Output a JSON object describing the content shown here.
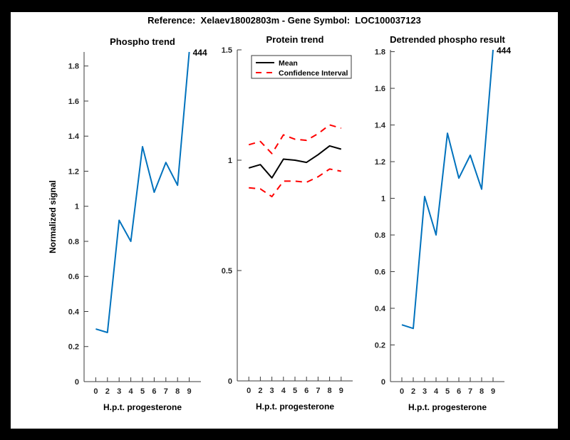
{
  "figure": {
    "title": "Reference:  Xelaev18002803m - Gene Symbol:  LOC100037123"
  },
  "colors": {
    "line_blue": "#0072BD",
    "ci_red": "#FF0000",
    "mean_black": "#000000",
    "axis": "#3a3a3a",
    "canvas": "#ffffff",
    "frame": "#000000"
  },
  "chart_data": [
    {
      "id": "phospho-trend",
      "type": "line",
      "title": "Phospho trend",
      "xlabel": "H.p.t. progesterone",
      "ylabel": "Normalized signal",
      "xlim": [
        0,
        10
      ],
      "ylim": [
        0,
        1.88
      ],
      "x": [
        1,
        2,
        3,
        4,
        5,
        6,
        7,
        8,
        9
      ],
      "x_tick_labels": [
        "0",
        "2",
        "3",
        "4",
        "5",
        "6",
        "7",
        "8",
        "9"
      ],
      "yticks": [
        0,
        0.2,
        0.4,
        0.6,
        0.8,
        1,
        1.2,
        1.4,
        1.6,
        1.8
      ],
      "grid": false,
      "legend": null,
      "series": [
        {
          "name": "phospho-signal",
          "color": "#0072BD",
          "dash": "solid",
          "width": 2,
          "values": [
            0.3,
            0.28,
            0.92,
            0.8,
            1.34,
            1.08,
            1.25,
            1.12,
            1.88
          ]
        }
      ],
      "annotation": {
        "text": "444",
        "at": "last-point"
      }
    },
    {
      "id": "protein-trend",
      "type": "line",
      "title": "Protein trend",
      "xlabel": "H.p.t. progesterone",
      "ylabel": "",
      "xlim": [
        0,
        10
      ],
      "ylim": [
        0,
        1.5
      ],
      "x": [
        1,
        2,
        3,
        4,
        5,
        6,
        7,
        8,
        9
      ],
      "x_tick_labels": [
        "0",
        "2",
        "3",
        "4",
        "5",
        "6",
        "7",
        "8",
        "9"
      ],
      "yticks": [
        0,
        0.5,
        1,
        1.5
      ],
      "grid": false,
      "legend": {
        "position": "northeast",
        "entries": [
          {
            "label": "Mean",
            "color": "#000000",
            "dash": "solid"
          },
          {
            "label": "Confidence Interval",
            "color": "#FF0000",
            "dash": "dashed"
          }
        ]
      },
      "series": [
        {
          "name": "mean",
          "color": "#000000",
          "dash": "solid",
          "width": 2,
          "values": [
            0.965,
            0.98,
            0.92,
            1.005,
            1.0,
            0.99,
            1.025,
            1.065,
            1.05
          ]
        },
        {
          "name": "confidence-upper",
          "color": "#FF0000",
          "dash": "dashed",
          "width": 2,
          "values": [
            1.07,
            1.085,
            1.03,
            1.115,
            1.095,
            1.09,
            1.12,
            1.16,
            1.145
          ]
        },
        {
          "name": "confidence-lower",
          "color": "#FF0000",
          "dash": "dashed",
          "width": 2,
          "values": [
            0.875,
            0.87,
            0.835,
            0.905,
            0.905,
            0.9,
            0.925,
            0.96,
            0.95
          ]
        }
      ],
      "annotation": null
    },
    {
      "id": "detrended-phospho-result",
      "type": "line",
      "title": "Detrended phospho result",
      "xlabel": "H.p.t. progesterone",
      "ylabel": "",
      "xlim": [
        0,
        10
      ],
      "ylim": [
        0,
        1.81
      ],
      "x": [
        1,
        2,
        3,
        4,
        5,
        6,
        7,
        8,
        9
      ],
      "x_tick_labels": [
        "0",
        "2",
        "3",
        "4",
        "5",
        "6",
        "7",
        "8",
        "9"
      ],
      "yticks": [
        0,
        0.2,
        0.4,
        0.6,
        0.8,
        1,
        1.2,
        1.4,
        1.6,
        1.8
      ],
      "grid": false,
      "legend": null,
      "series": [
        {
          "name": "detrended-phospho",
          "color": "#0072BD",
          "dash": "solid",
          "width": 2,
          "values": [
            0.31,
            0.29,
            1.01,
            0.8,
            1.355,
            1.11,
            1.235,
            1.05,
            1.81
          ]
        }
      ],
      "annotation": {
        "text": "444",
        "at": "last-point"
      }
    }
  ]
}
